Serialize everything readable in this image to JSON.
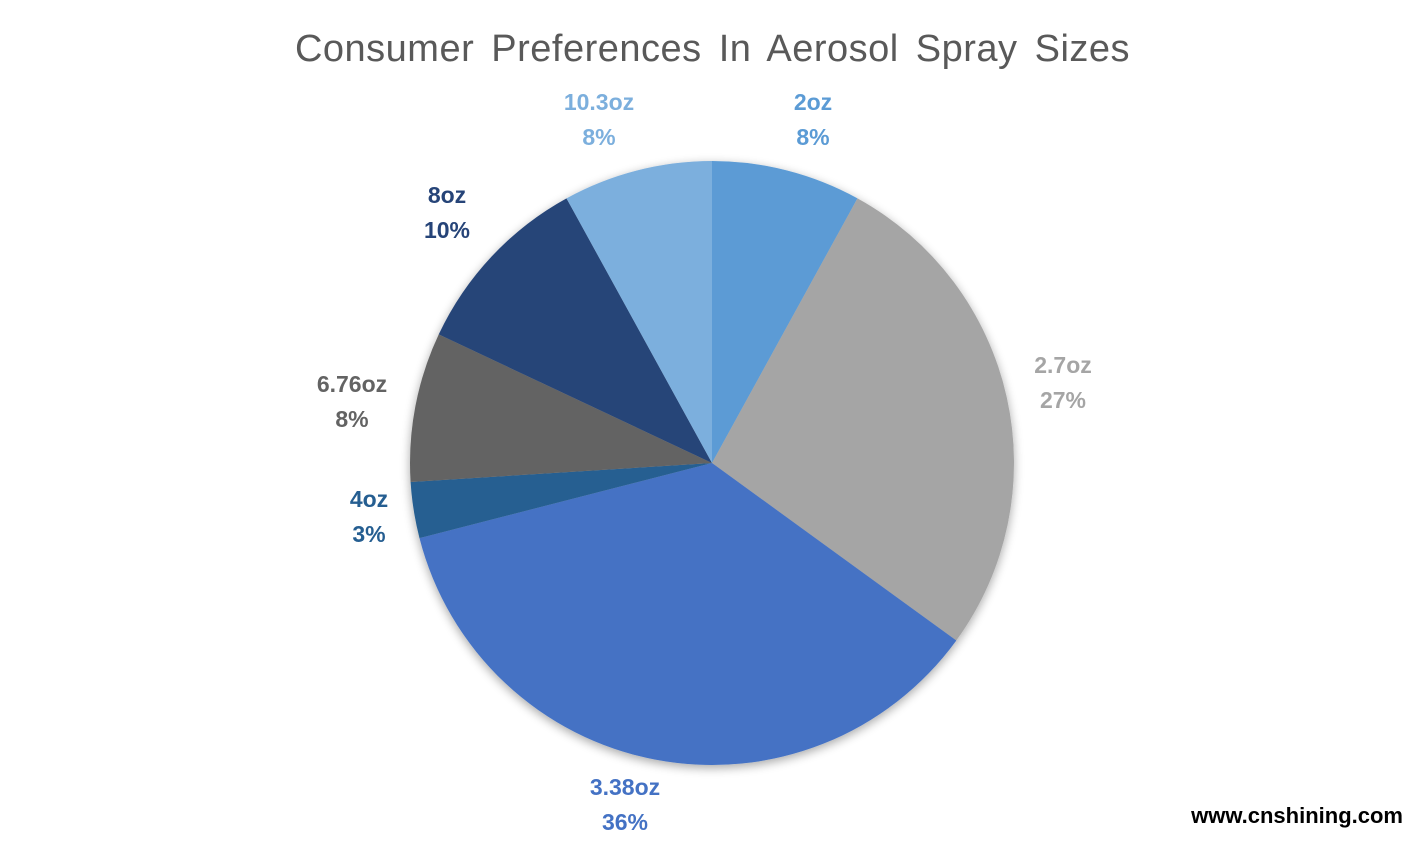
{
  "chart_data": {
    "type": "pie",
    "title": "Consumer Preferences In Aerosol Spray Sizes",
    "categories": [
      "2oz",
      "2.7oz",
      "3.38oz",
      "4oz",
      "6.76oz",
      "8oz",
      "10.3oz"
    ],
    "values": [
      8,
      27,
      36,
      3,
      8,
      10,
      8
    ],
    "labels_pct": [
      "8%",
      "27%",
      "36%",
      "3%",
      "8%",
      "10%",
      "8%"
    ],
    "colors": [
      "#5B9BD5",
      "#A5A5A5",
      "#4472C4",
      "#255E91",
      "#636363",
      "#264478",
      "#7CAFDD"
    ],
    "start": "12 o'clock, clockwise",
    "legend": "none"
  },
  "watermark": "www.cnshining.com"
}
